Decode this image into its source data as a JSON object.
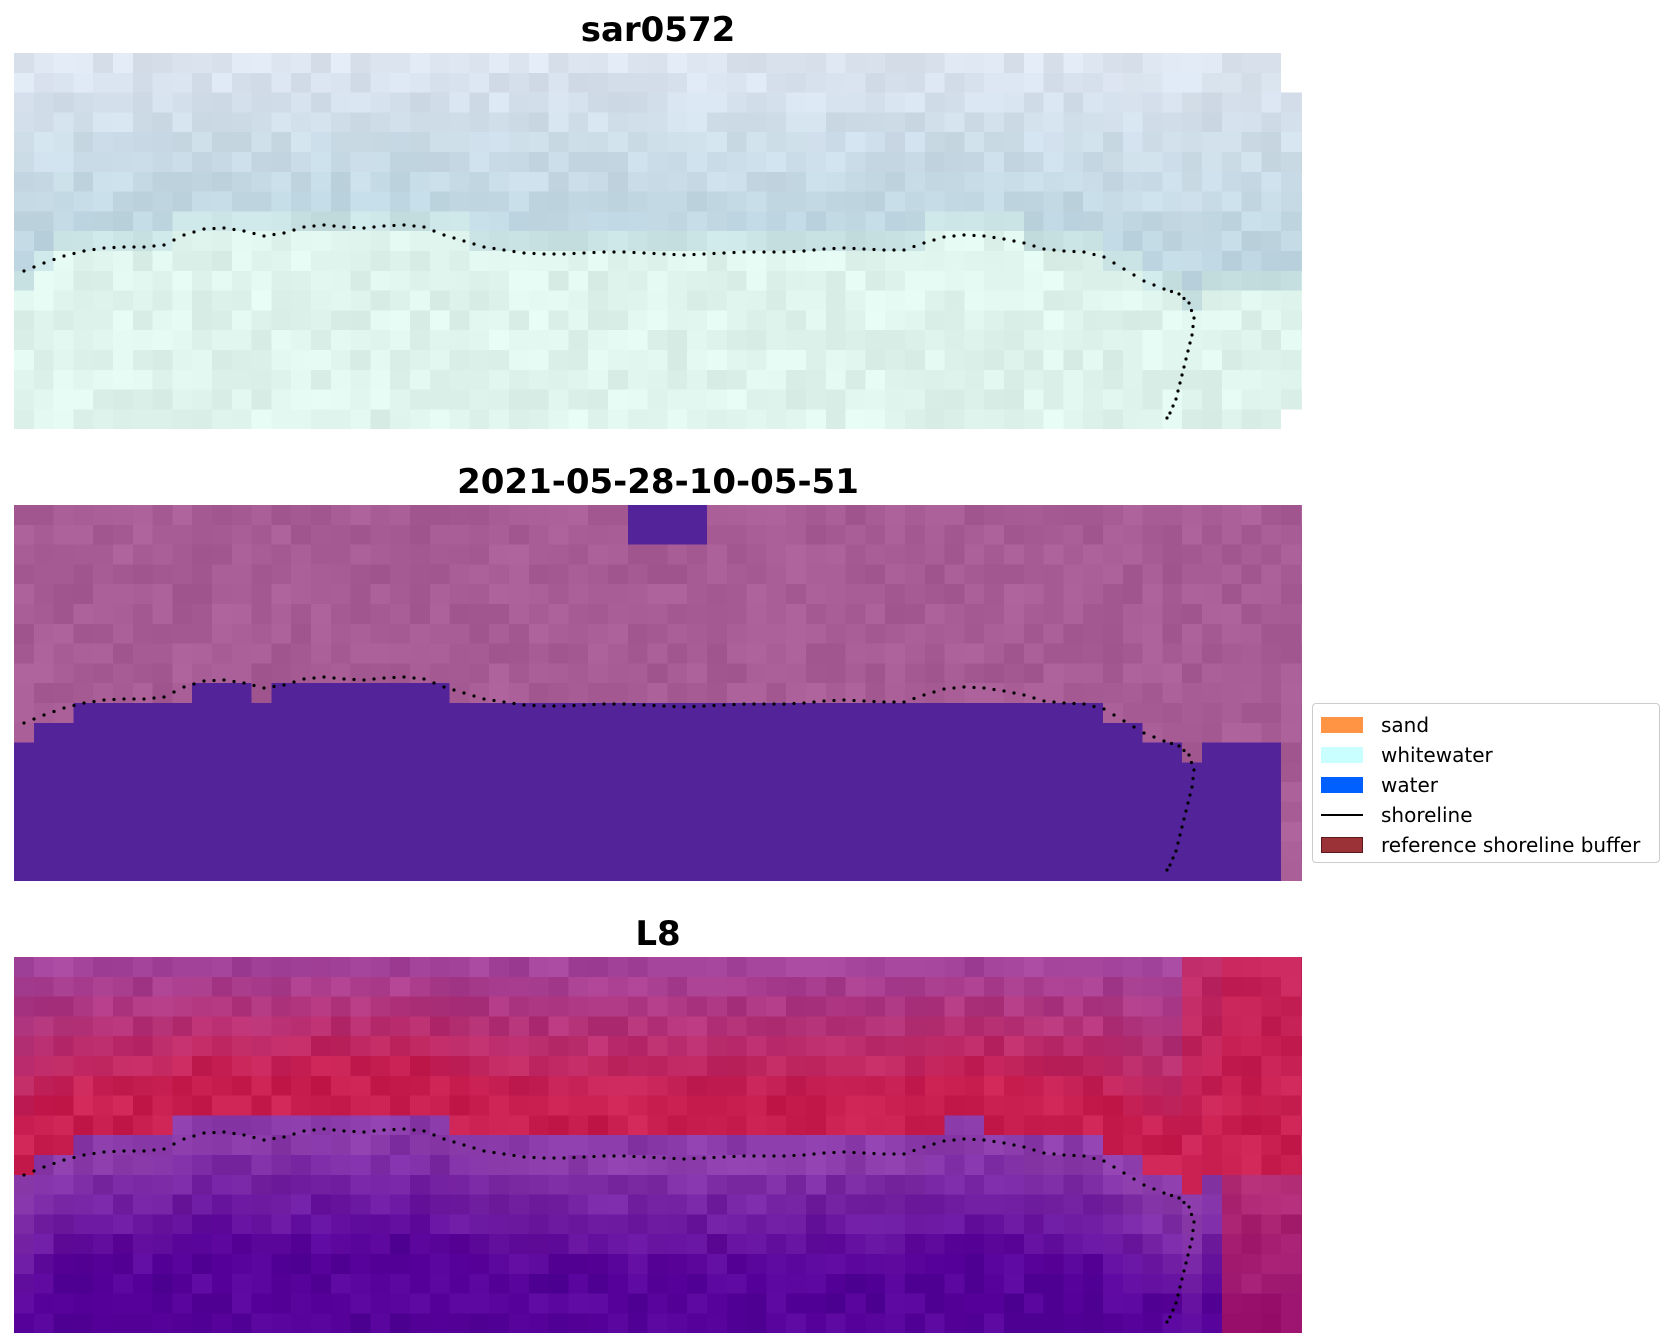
{
  "panels": [
    {
      "title": "sar0572",
      "style": "rgb"
    },
    {
      "title": "2021-05-28-10-05-51",
      "style": "classified"
    },
    {
      "title": "L8",
      "style": "index"
    }
  ],
  "legend": {
    "items": [
      {
        "label": "sand",
        "kind": "patch",
        "color": "#ff9445"
      },
      {
        "label": "whitewater",
        "kind": "patch",
        "color": "#c9ffff"
      },
      {
        "label": "water",
        "kind": "patch",
        "color": "#0060ff"
      },
      {
        "label": "shoreline",
        "kind": "line",
        "color": "#000000"
      },
      {
        "label": "reference shoreline buffer",
        "kind": "patch",
        "color": "#9a3238"
      }
    ]
  },
  "colors": {
    "classified_water": "#53239a",
    "classified_land": "#a85c95",
    "index_water": "#56009a",
    "index_land": "#c71e52"
  }
}
